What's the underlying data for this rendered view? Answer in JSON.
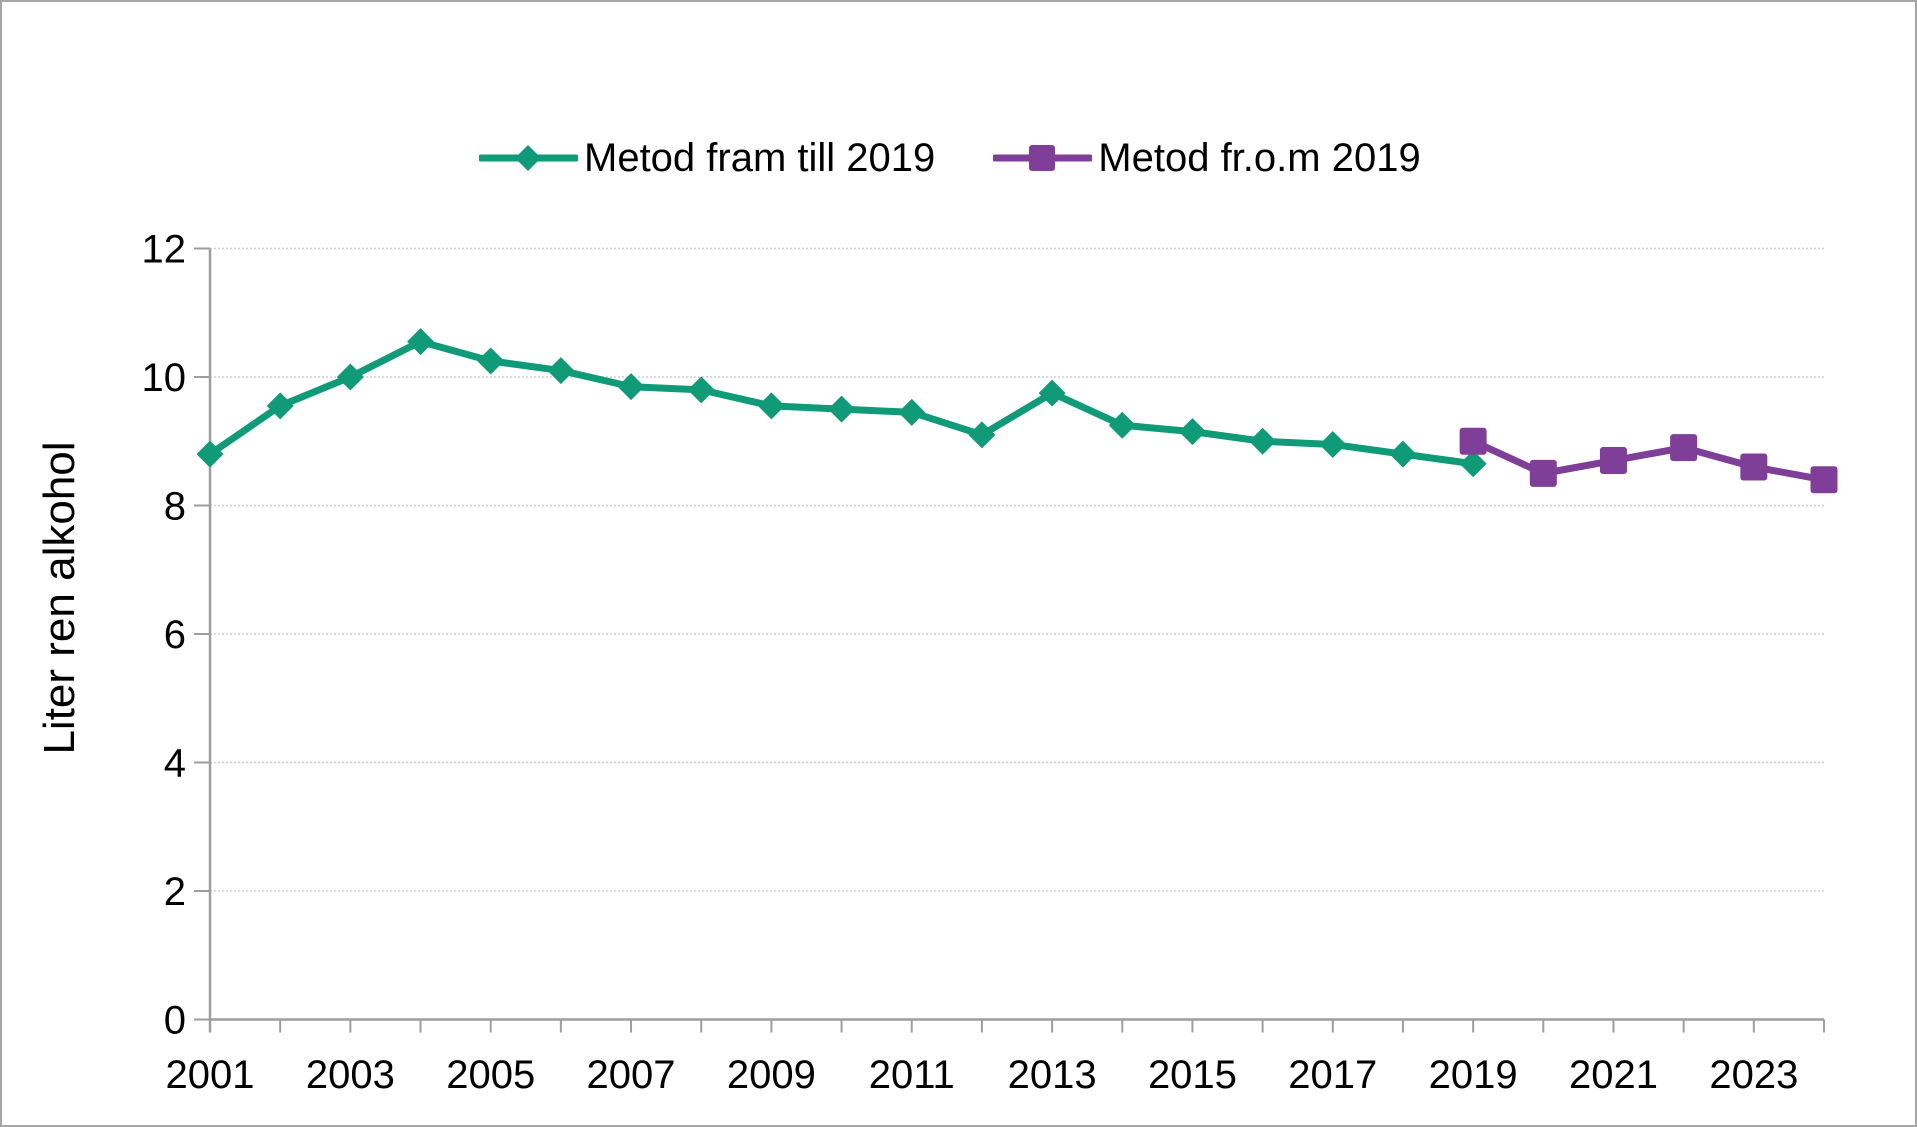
{
  "figure": {
    "background": "#ffffff",
    "border_color": "#a6a6a6"
  },
  "legend": {
    "position": "top-center",
    "items": [
      {
        "label": "Metod fram till 2019",
        "color": "#0f9b78",
        "marker": "diamond"
      },
      {
        "label": "Metod fr.o.m 2019",
        "color": "#7f3f98",
        "marker": "square"
      }
    ]
  },
  "chart_data": {
    "type": "line",
    "title": "",
    "xlabel": "",
    "ylabel": "Liter ren alkohol",
    "ylim": [
      0,
      12
    ],
    "y_ticks": [
      0,
      2,
      4,
      6,
      8,
      10,
      12
    ],
    "x_range": [
      2001,
      2024
    ],
    "x_tick_labels": [
      2001,
      2003,
      2005,
      2007,
      2009,
      2011,
      2013,
      2015,
      2017,
      2019,
      2021,
      2023
    ],
    "x_minor_tick_every_year": true,
    "grid": "horizontal",
    "grid_color": "#cfcfcf",
    "axis_color": "#9e9e9e",
    "series": [
      {
        "name": "Metod fram till 2019",
        "color": "#0f9b78",
        "marker": "diamond",
        "x": [
          2001,
          2002,
          2003,
          2004,
          2005,
          2006,
          2007,
          2008,
          2009,
          2010,
          2011,
          2012,
          2013,
          2014,
          2015,
          2016,
          2017,
          2018,
          2019
        ],
        "values": [
          8.8,
          9.55,
          10.0,
          10.55,
          10.25,
          10.1,
          9.85,
          9.8,
          9.55,
          9.5,
          9.45,
          9.1,
          9.75,
          9.25,
          9.15,
          9.0,
          8.95,
          8.8,
          8.65
        ]
      },
      {
        "name": "Metod fr.o.m 2019",
        "color": "#7f3f98",
        "marker": "square",
        "x": [
          2019,
          2020,
          2021,
          2022,
          2023,
          2024
        ],
        "values": [
          9.0,
          8.5,
          8.7,
          8.9,
          8.6,
          8.4
        ]
      }
    ]
  }
}
